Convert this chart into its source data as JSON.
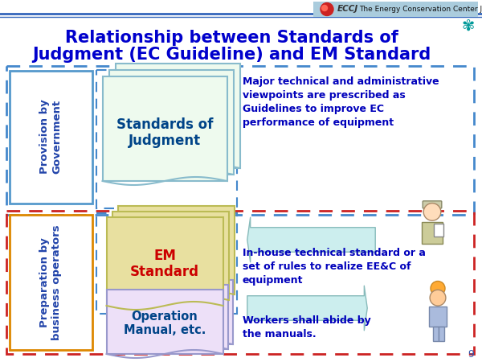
{
  "title_line1": "Relationship between Standards of",
  "title_line2": "Judgment (EC Guideline) and EM Standard",
  "title_color": "#0000CC",
  "title_fontsize": 15,
  "bg_color": "#FFFFFF",
  "left_box1_text": "Provision by\nGovernment",
  "left_box1_border": "#5599CC",
  "left_box1_text_color": "#2244AA",
  "left_box2_text": "Preparation by\nbusiness operators",
  "left_box2_border": "#DD8800",
  "left_box2_text_color": "#2244AA",
  "soj_text": "Standards of\nJudgment",
  "soj_text_color": "#004488",
  "soj_bg": "#EEFAEE",
  "soj_border": "#88BBCC",
  "em_text": "EM\nStandard",
  "em_text_color": "#CC0000",
  "em_bg": "#E8E0A0",
  "em_border": "#BBBB55",
  "op_text": "Operation\nManual, etc.",
  "op_text_color": "#004488",
  "op_bg": "#EDE0F8",
  "op_border": "#9999CC",
  "desc1": "Major technical and administrative\nviewpoints are prescribed as\nGuidelines to improve EC\nperformance of equipment",
  "desc1_color": "#0000BB",
  "desc2": "In-house technical standard or a\nset of rules to realize EE&C of\nequipment",
  "desc2_color": "#0000BB",
  "desc3": "Workers shall abide by\nthe manuals.",
  "desc3_color": "#0000BB",
  "arrow_fill": "#CCEEEE",
  "arrow_edge": "#88BBBB",
  "blue_dash_color": "#4488CC",
  "red_dash_color": "#CC2222",
  "header_bg": "#AACCDD",
  "page_num": "9"
}
